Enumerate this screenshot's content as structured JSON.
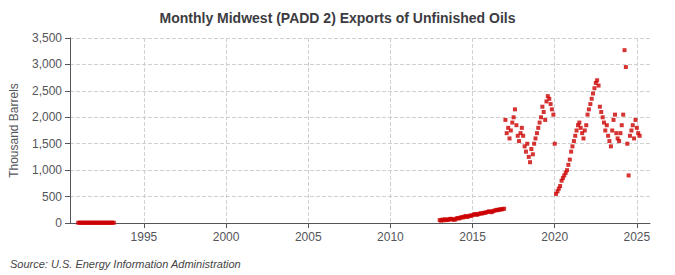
{
  "chart_data": {
    "type": "scatter",
    "title": "Monthly Midwest (PADD 2) Exports of Unfinished Oils",
    "ylabel": "Thousand Barrels",
    "annotation": "Source: U.S. Energy Information Administration",
    "color": "#cc0000",
    "marker": "square",
    "grid": true,
    "xlim": [
      1990.5,
      2025.8
    ],
    "ylim": [
      0,
      3500
    ],
    "xticks": [
      1995,
      2000,
      2005,
      2010,
      2015,
      2020,
      2025
    ],
    "yticks": [
      0,
      500,
      {
        "value": 1000,
        "label": "1,000"
      },
      {
        "value": 1500,
        "label": "1,500"
      },
      {
        "value": 2000,
        "label": "2,000"
      },
      {
        "value": 2500,
        "label": "2,500"
      },
      {
        "value": 3000,
        "label": "3,000"
      },
      {
        "value": 3500,
        "label": "3,500"
      }
    ],
    "x": [
      1991.0,
      1991.08,
      1991.17,
      1991.25,
      1991.33,
      1991.42,
      1991.5,
      1991.58,
      1991.67,
      1991.75,
      1991.83,
      1991.92,
      1992.0,
      1992.08,
      1992.17,
      1992.25,
      1992.33,
      1992.42,
      1992.5,
      1992.58,
      1992.67,
      1992.75,
      1992.83,
      1992.92,
      1993.0,
      1993.08,
      1993.17,
      2013.0,
      2013.08,
      2013.17,
      2013.25,
      2013.33,
      2013.42,
      2013.5,
      2013.58,
      2013.67,
      2013.75,
      2013.83,
      2013.92,
      2014.0,
      2014.08,
      2014.17,
      2014.25,
      2014.33,
      2014.42,
      2014.5,
      2014.58,
      2014.67,
      2014.75,
      2014.83,
      2014.92,
      2015.0,
      2015.08,
      2015.17,
      2015.25,
      2015.33,
      2015.42,
      2015.5,
      2015.58,
      2015.67,
      2015.75,
      2015.83,
      2015.92,
      2016.0,
      2016.08,
      2016.17,
      2016.25,
      2016.33,
      2016.42,
      2016.5,
      2016.58,
      2016.67,
      2016.75,
      2016.83,
      2016.92,
      2017.0,
      2017.08,
      2017.17,
      2017.25,
      2017.33,
      2017.42,
      2017.5,
      2017.58,
      2017.67,
      2017.75,
      2017.83,
      2017.92,
      2018.0,
      2018.08,
      2018.17,
      2018.25,
      2018.33,
      2018.42,
      2018.5,
      2018.58,
      2018.67,
      2018.75,
      2018.83,
      2018.92,
      2019.0,
      2019.08,
      2019.17,
      2019.25,
      2019.33,
      2019.42,
      2019.5,
      2019.58,
      2019.67,
      2019.75,
      2019.83,
      2019.92,
      2020.0,
      2020.08,
      2020.17,
      2020.25,
      2020.33,
      2020.42,
      2020.5,
      2020.58,
      2020.67,
      2020.75,
      2020.83,
      2020.92,
      2021.0,
      2021.08,
      2021.17,
      2021.25,
      2021.33,
      2021.42,
      2021.5,
      2021.58,
      2021.67,
      2021.75,
      2021.83,
      2021.92,
      2022.0,
      2022.08,
      2022.17,
      2022.25,
      2022.33,
      2022.42,
      2022.5,
      2022.58,
      2022.67,
      2022.75,
      2022.83,
      2022.92,
      2023.0,
      2023.08,
      2023.17,
      2023.25,
      2023.33,
      2023.42,
      2023.5,
      2023.58,
      2023.67,
      2023.75,
      2023.83,
      2023.92,
      2024.0,
      2024.08,
      2024.17,
      2024.25,
      2024.33,
      2024.42,
      2024.5,
      2024.58,
      2024.67,
      2024.75,
      2024.83,
      2024.92,
      2025.0,
      2025.08,
      2025.17
    ],
    "values": [
      5,
      5,
      5,
      5,
      5,
      5,
      5,
      5,
      5,
      5,
      5,
      5,
      5,
      5,
      5,
      5,
      5,
      5,
      5,
      5,
      5,
      5,
      5,
      5,
      5,
      5,
      5,
      55,
      45,
      65,
      50,
      70,
      60,
      55,
      75,
      80,
      65,
      70,
      60,
      80,
      95,
      85,
      100,
      110,
      105,
      120,
      130,
      115,
      125,
      140,
      135,
      150,
      160,
      170,
      155,
      165,
      175,
      185,
      180,
      190,
      195,
      200,
      210,
      220,
      215,
      205,
      225,
      235,
      240,
      250,
      245,
      260,
      255,
      265,
      270,
      1950,
      1700,
      1800,
      1600,
      1750,
      1900,
      2000,
      2150,
      1850,
      1650,
      1550,
      1700,
      1800,
      1650,
      1450,
      1350,
      1500,
      1250,
      1150,
      1400,
      1300,
      1500,
      1600,
      1700,
      1800,
      1900,
      2000,
      2200,
      2100,
      1950,
      2300,
      2400,
      2350,
      2250,
      2150,
      2050,
      1500,
      550,
      600,
      650,
      700,
      800,
      850,
      900,
      950,
      1000,
      1100,
      1200,
      1350,
      1450,
      1550,
      1650,
      1750,
      1850,
      1900,
      1800,
      1700,
      1600,
      1750,
      1850,
      2050,
      2150,
      2250,
      2350,
      2450,
      2550,
      2650,
      2700,
      2600,
      2200,
      2100,
      2000,
      1900,
      1750,
      1850,
      1650,
      1550,
      1450,
      1750,
      1950,
      2050,
      1700,
      1600,
      1550,
      1700,
      1850,
      2050,
      3270,
      2950,
      1500,
      900,
      1650,
      1750,
      1850,
      1600,
      1950,
      1800,
      1700,
      1650
    ]
  }
}
